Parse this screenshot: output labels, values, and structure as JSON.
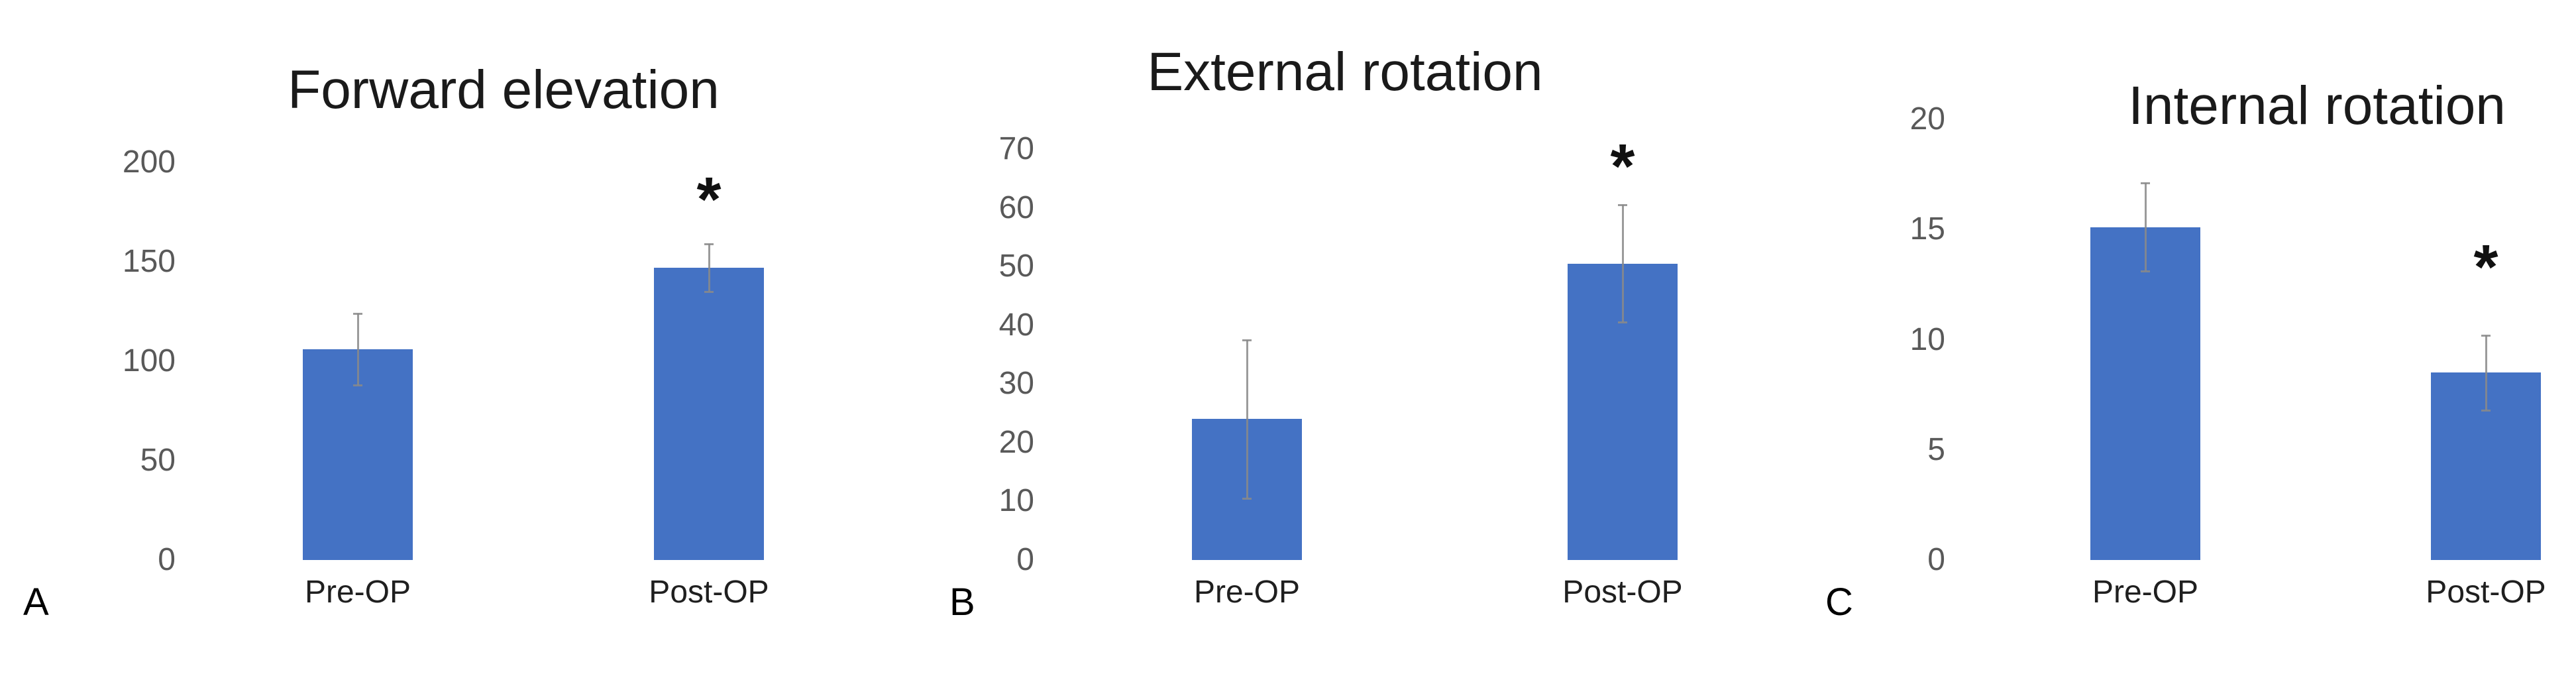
{
  "figure": {
    "background_color": "#ffffff",
    "bar_color": "#4472c4",
    "error_bar_color": "#8a8a8a",
    "title_color": "#1a1a1a",
    "tick_label_color": "#595959",
    "category_label_color": "#1f1f1f",
    "panel_letter_color": "#000000",
    "significance_color": "#111111"
  },
  "chart_data": [
    {
      "type": "bar",
      "panel_letter": "A",
      "title": "Forward elevation",
      "categories": [
        "Pre-OP",
        "Post-OP"
      ],
      "values": [
        106,
        147
      ],
      "error_bars": [
        18,
        12
      ],
      "ylim": [
        0,
        200
      ],
      "yticks": [
        0,
        50,
        100,
        150,
        200
      ],
      "significance": {
        "category_index": 1,
        "symbol": "*",
        "y": 187
      },
      "grid": false,
      "legend": false,
      "xlabel": "",
      "ylabel": ""
    },
    {
      "type": "bar",
      "panel_letter": "B",
      "title": "External rotation",
      "categories": [
        "Pre-OP",
        "Post-OP"
      ],
      "values": [
        24,
        50.5
      ],
      "error_bars": [
        13.5,
        10
      ],
      "ylim": [
        0,
        70
      ],
      "yticks": [
        0,
        10,
        20,
        30,
        40,
        50,
        60,
        70
      ],
      "significance": {
        "category_index": 1,
        "symbol": "*",
        "y": 69
      },
      "grid": false,
      "legend": false,
      "xlabel": "",
      "ylabel": ""
    },
    {
      "type": "bar",
      "panel_letter": "C",
      "title": "Internal rotation",
      "categories": [
        "Pre-OP",
        "Post-OP"
      ],
      "values": [
        15.1,
        8.5
      ],
      "error_bars": [
        2.0,
        1.7
      ],
      "ylim": [
        0,
        20
      ],
      "yticks": [
        0,
        5,
        10,
        15,
        20
      ],
      "significance": {
        "category_index": 1,
        "symbol": "*",
        "y": 13.8
      },
      "grid": false,
      "legend": false,
      "xlabel": "",
      "ylabel": ""
    }
  ]
}
